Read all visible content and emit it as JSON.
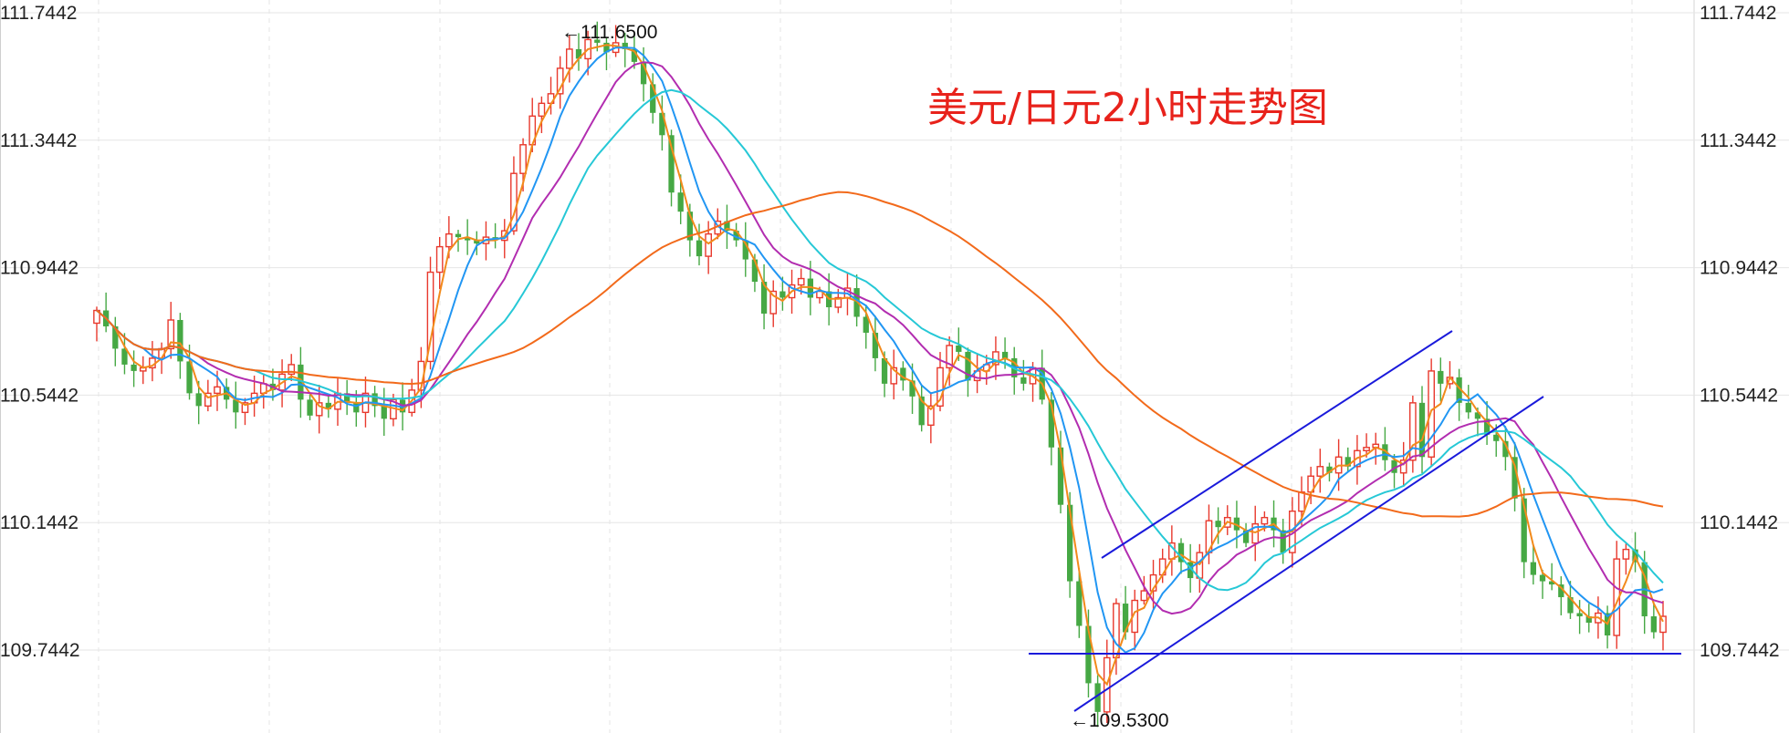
{
  "chart_data": {
    "type": "candlestick",
    "title": "美元/日元2小时走势图",
    "y_ticks": [
      "111.7442",
      "111.3442",
      "110.9442",
      "110.5442",
      "110.1442",
      "109.7442"
    ],
    "y_tick_values": [
      111.7442,
      111.3442,
      110.9442,
      110.5442,
      110.1442,
      109.7442
    ],
    "ylim": [
      109.47,
      111.77
    ],
    "grid": true,
    "colors": {
      "up": "#e8392d",
      "down": "#46a844",
      "ma1": "#f28a1b",
      "ma2": "#2196f3",
      "ma3": "#b22db0",
      "ma4": "#26c8d6",
      "ma5": "#f26a1b",
      "trend": "#1a1adb",
      "title": "#e8221b"
    },
    "closes": [
      110.81,
      110.76,
      110.69,
      110.64,
      110.62,
      110.63,
      110.66,
      110.69,
      110.78,
      110.65,
      110.55,
      110.51,
      110.55,
      110.57,
      110.53,
      110.49,
      110.52,
      110.55,
      110.58,
      110.56,
      110.61,
      110.64,
      110.53,
      110.48,
      110.52,
      110.5,
      110.55,
      110.52,
      110.49,
      110.55,
      110.51,
      110.47,
      110.53,
      110.49,
      110.56,
      110.65,
      110.93,
      111.01,
      111.05,
      111.04,
      111.03,
      111.02,
      111.04,
      111.03,
      111.06,
      111.24,
      111.33,
      111.42,
      111.46,
      111.49,
      111.57,
      111.63,
      111.6,
      111.66,
      111.65,
      111.62,
      111.65,
      111.63,
      111.59,
      111.52,
      111.43,
      111.36,
      111.18,
      111.12,
      111.03,
      110.98,
      111.05,
      111.09,
      111.06,
      111.03,
      110.97,
      110.9,
      110.8,
      110.87,
      110.85,
      110.89,
      110.91,
      110.85,
      110.87,
      110.82,
      110.85,
      110.88,
      110.79,
      110.74,
      110.66,
      110.58,
      110.63,
      110.59,
      110.54,
      110.45,
      110.51,
      110.63,
      110.7,
      110.68,
      110.59,
      110.62,
      110.64,
      110.68,
      110.66,
      110.6,
      110.58,
      110.63,
      110.53,
      110.38,
      110.2,
      109.96,
      109.82,
      109.64,
      109.55,
      109.72,
      109.89,
      109.8,
      109.9,
      109.93,
      109.98,
      110.03,
      110.08,
      110.02,
      109.97,
      110.05,
      110.15,
      110.13,
      110.16,
      110.12,
      110.08,
      110.14,
      110.16,
      110.12,
      110.05,
      110.18,
      110.24,
      110.29,
      110.32,
      110.3,
      110.35,
      110.32,
      110.37,
      110.38,
      110.39,
      110.34,
      110.3,
      110.34,
      110.52,
      110.35,
      110.62,
      110.58,
      110.6,
      110.52,
      110.49,
      110.47,
      110.42,
      110.4,
      110.35,
      110.22,
      110.02,
      109.98,
      109.96,
      109.95,
      109.91,
      109.86,
      109.85,
      109.83,
      109.86,
      109.79,
      110.03,
      110.06,
      110.02,
      109.85,
      109.8,
      109.85
    ]
  },
  "annotations": {
    "high": {
      "label": "←111.6500",
      "value": 111.65
    },
    "low": {
      "label": "←109.5300",
      "value": 109.53
    }
  }
}
